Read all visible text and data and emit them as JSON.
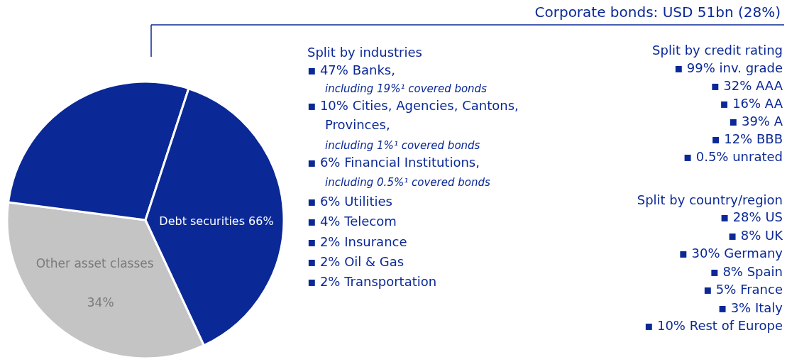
{
  "chart_data": {
    "type": "pie",
    "categories": [
      "Other asset classes",
      null,
      null
    ],
    "values": [
      34,
      28,
      38
    ],
    "colors": [
      "#c4c4c4",
      "#0a2896",
      "#0a2896"
    ],
    "value_labels": [
      "34%",
      null,
      null
    ],
    "annotations": [
      "Corporate bonds: USD 51bn (28%)",
      "Split by industries",
      "▪ 47% Banks,",
      "including 19%¹ covered bonds",
      "▪ 10% Cities, Agencies, Cantons,",
      "Provinces,",
      "including 1%¹ covered bonds",
      "▪ 6% Financial Institutions,",
      "including 0.5%¹ covered bonds",
      "▪ 6% Utilities",
      "▪ 4% Telecom",
      "▪ 2% Insurance",
      "▪ 2% Oil & Gas",
      "▪ 2% Transportation",
      "Split by credit rating",
      "▪ 99% inv. grade",
      "▪ 32% AAA",
      "▪ 16% AA",
      "▪ 39% A",
      "▪ 12% BBB",
      "▪ 0.5% unrated",
      "Split by country/region",
      "▪ 28% US",
      "▪ 8% UK",
      "▪ 30% Germany",
      "▪ 8% Spain",
      "▪ 5% France",
      "▪ 3% Italy",
      "▪ 10% Rest of Europe",
      "Debt securities 66%"
    ]
  }
}
